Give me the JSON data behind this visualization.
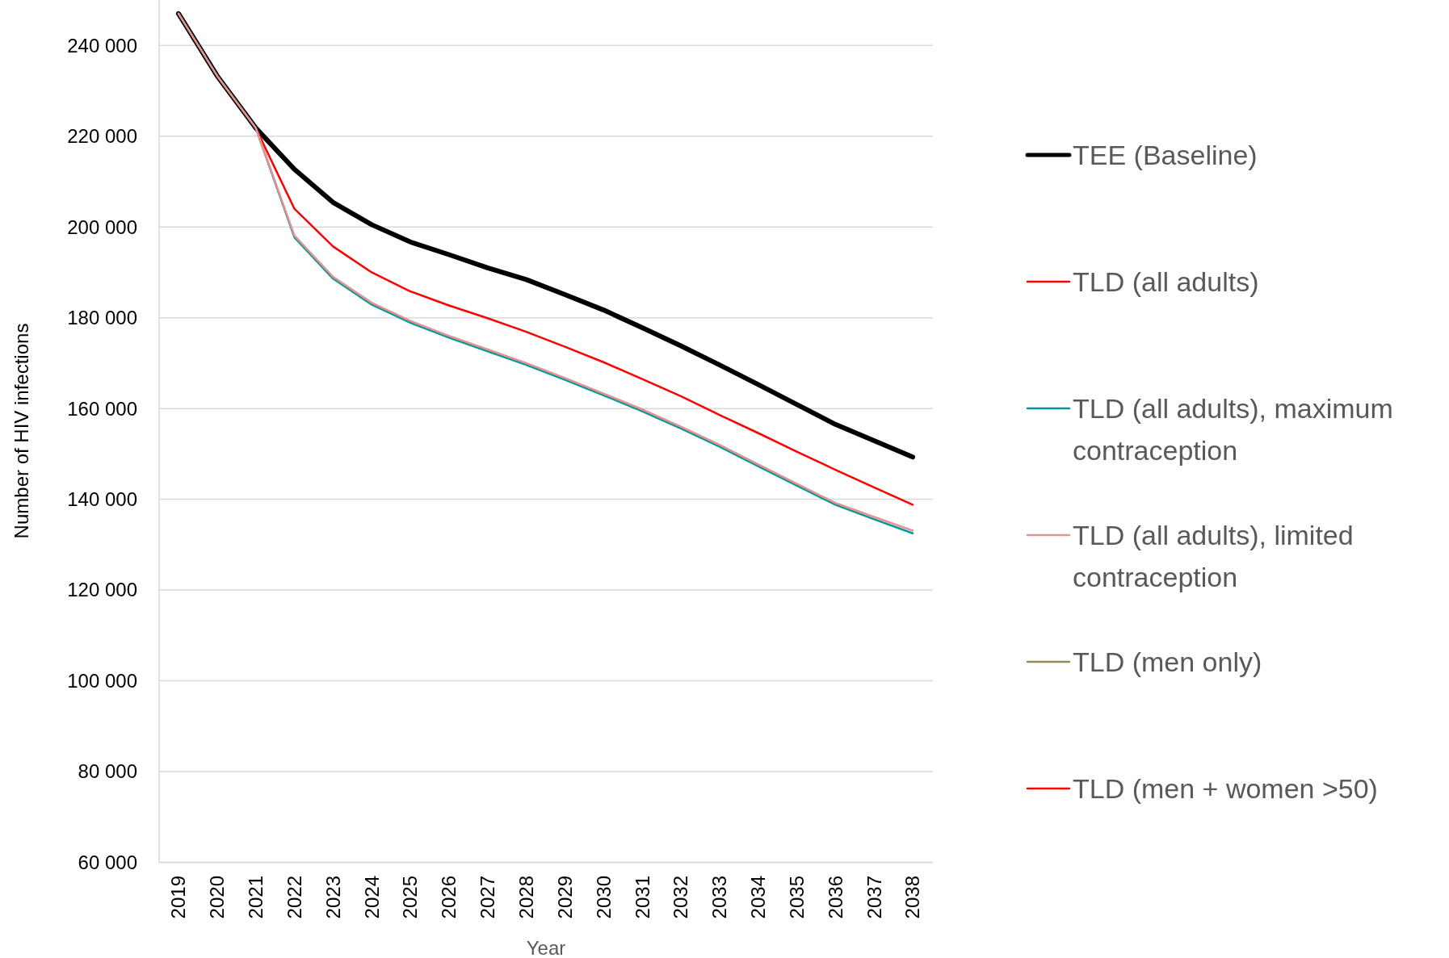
{
  "chart_data": {
    "type": "line",
    "xlabel": "Year",
    "ylabel": "Number of HIV infections",
    "categories": [
      "2019",
      "2020",
      "2021",
      "2022",
      "2023",
      "2024",
      "2025",
      "2026",
      "2027",
      "2028",
      "2029",
      "2030",
      "2031",
      "2032",
      "2033",
      "2034",
      "2035",
      "2036",
      "2037",
      "2038"
    ],
    "ylim": [
      60000,
      250000
    ],
    "yticks": [
      {
        "value": 60000,
        "label": "60 000"
      },
      {
        "value": 80000,
        "label": "80 000"
      },
      {
        "value": 100000,
        "label": "100 000"
      },
      {
        "value": 120000,
        "label": "120 000"
      },
      {
        "value": 140000,
        "label": "140 000"
      },
      {
        "value": 160000,
        "label": "160 000"
      },
      {
        "value": 180000,
        "label": "180 000"
      },
      {
        "value": 200000,
        "label": "200 000"
      },
      {
        "value": 220000,
        "label": "220 000"
      },
      {
        "value": 240000,
        "label": "240 000"
      }
    ],
    "grid": "y",
    "legend": "right",
    "marker": "none",
    "line_style": "solid",
    "series": [
      {
        "name": "TEE (Baseline)",
        "color": "#000000",
        "values": [
          247000,
          233300,
          221800,
          212700,
          205400,
          200500,
          196700,
          193900,
          191000,
          188400,
          185100,
          181700,
          177800,
          173800,
          169600,
          165300,
          160900,
          156500,
          152900,
          149300
        ]
      },
      {
        "name": "TLD (all adults)",
        "color": "#ff0000",
        "values": [
          247000,
          233300,
          221800,
          204000,
          195700,
          190000,
          185800,
          182700,
          179900,
          176900,
          173600,
          170200,
          166500,
          162700,
          158600,
          154600,
          150500,
          146500,
          142600,
          138800
        ]
      },
      {
        "name": "TLD (all adults), maximum contraception",
        "color": "#009999",
        "values": [
          247000,
          233300,
          221800,
          197700,
          188600,
          182900,
          178900,
          175600,
          172600,
          169600,
          166300,
          162900,
          159400,
          155600,
          151600,
          147300,
          143000,
          138800,
          135600,
          132500
        ]
      },
      {
        "name": "TLD (all adults), limited contraception",
        "color": "#e6908f",
        "values": [
          247000,
          233300,
          221800,
          198100,
          189000,
          183300,
          179300,
          176000,
          173000,
          170000,
          166700,
          163300,
          159800,
          156000,
          152000,
          147700,
          143400,
          139200,
          136100,
          133100
        ]
      },
      {
        "name": "TLD (men only)",
        "color": "#948a54",
        "values": [
          null,
          null,
          null,
          null,
          null,
          null,
          null,
          null,
          null,
          null,
          null,
          null,
          null,
          null,
          null,
          null,
          null,
          null,
          null,
          null
        ]
      },
      {
        "name": "TLD (men + women >50)",
        "color": "#ff0000",
        "values": [
          null,
          null,
          null,
          null,
          null,
          null,
          null,
          null,
          null,
          null,
          null,
          null,
          null,
          null,
          null,
          null,
          null,
          null,
          null,
          null
        ]
      }
    ]
  }
}
